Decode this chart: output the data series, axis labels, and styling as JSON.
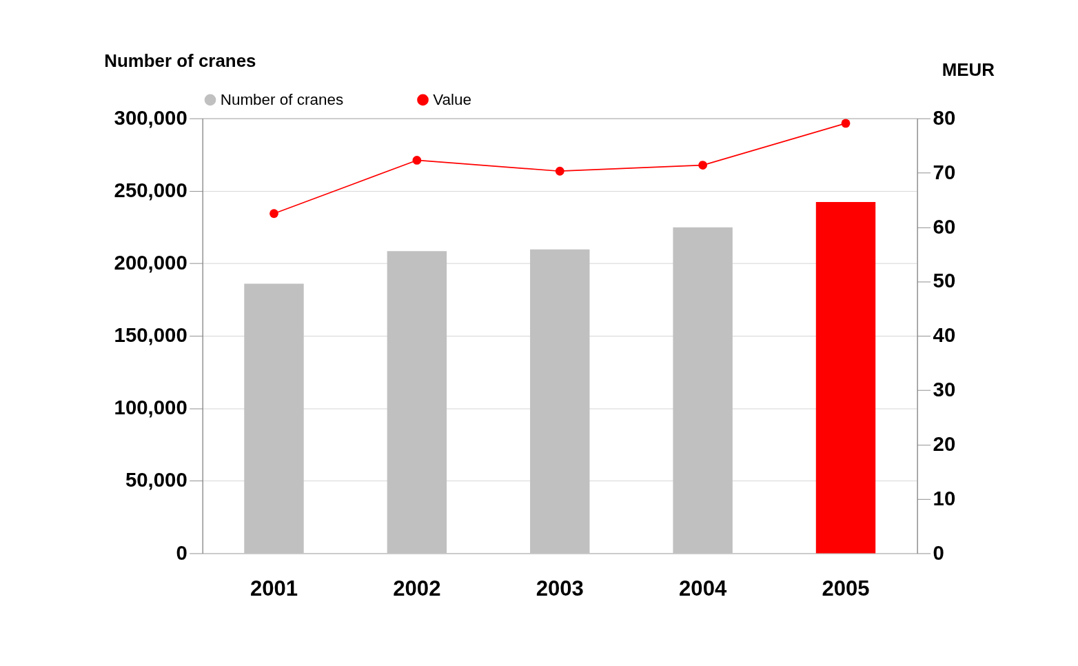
{
  "chart_data": {
    "type": "bar",
    "categories": [
      "2001",
      "2002",
      "2003",
      "2004",
      "2005"
    ],
    "series": [
      {
        "name": "Number of cranes",
        "color": "#c0c0c0",
        "colors": [
          "#c0c0c0",
          "#c0c0c0",
          "#c0c0c0",
          "#c0c0c0",
          "#ff0000"
        ],
        "values": [
          186000,
          208400,
          209600,
          224800,
          242300
        ]
      },
      {
        "name": "Value",
        "type": "line",
        "axis": "y2",
        "color": "#ff0000",
        "values": [
          62.5,
          72.3,
          70.3,
          71.4,
          79.1
        ]
      }
    ],
    "ylabel": "Number of cranes",
    "y2label": "MEUR",
    "ylim": [
      0,
      300000
    ],
    "yticks": [
      0,
      {
        "value": 50000,
        "label": "50,000"
      },
      {
        "value": 100000,
        "label": "100,000"
      },
      {
        "value": 150000,
        "label": "150,000"
      },
      {
        "value": 200000,
        "label": "200,000"
      },
      {
        "value": 250000,
        "label": "250,000"
      },
      {
        "value": 300000,
        "label": "300,000"
      }
    ],
    "y2lim": [
      0,
      80
    ],
    "y2ticks": [
      0,
      10,
      20,
      30,
      40,
      50,
      60,
      70,
      80
    ],
    "grid": "y",
    "legend": "top",
    "marker": "circle"
  }
}
